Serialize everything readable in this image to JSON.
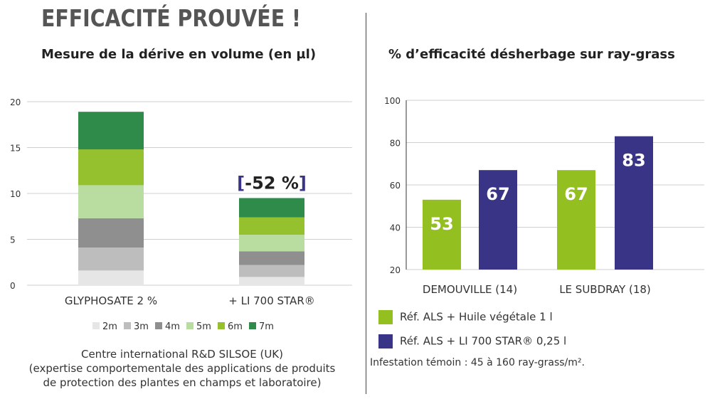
{
  "heading": "EFFICACITÉ PROUVÉE !",
  "colors": {
    "2m": "#e6e6e6",
    "3m": "#bdbdbd",
    "4m": "#8f8f8f",
    "5m": "#b9dca0",
    "6m": "#94c12d",
    "7m": "#2e8b4a",
    "green": "#93c020",
    "navy": "#3a3487",
    "badge": "#3a3487"
  },
  "chart_data": [
    {
      "type": "bar",
      "stacked": true,
      "title": "Mesure de la dérive en volume (en µl)",
      "categories": [
        "GLYPHOSATE 2 %",
        "+ LI 700 STAR®"
      ],
      "series": [
        {
          "name": "2m",
          "values": [
            1.6,
            0.9
          ]
        },
        {
          "name": "3m",
          "values": [
            2.5,
            1.3
          ]
        },
        {
          "name": "4m",
          "values": [
            3.2,
            1.5
          ]
        },
        {
          "name": "5m",
          "values": [
            3.6,
            1.8
          ]
        },
        {
          "name": "6m",
          "values": [
            3.9,
            1.9
          ]
        },
        {
          "name": "7m",
          "values": [
            4.1,
            2.1
          ]
        }
      ],
      "yticks": [
        0,
        5,
        10,
        15,
        20
      ],
      "ylim": [
        0,
        20
      ],
      "grid": true,
      "annotation": {
        "text": "[-52 %]",
        "category_index": 1
      },
      "legend_position": "bottom"
    },
    {
      "type": "bar",
      "title": "% d’efficacité désherbage sur ray-grass",
      "categories": [
        "DEMOUVILLE (14)",
        "LE SUBDRAY (18)"
      ],
      "series": [
        {
          "name": "Réf. ALS + Huile végétale 1 l",
          "values": [
            53,
            67
          ]
        },
        {
          "name": "Réf. ALS + LI 700 STAR® 0,25 l",
          "values": [
            67,
            83
          ]
        }
      ],
      "yticks": [
        20,
        40,
        60,
        80,
        100
      ],
      "ylim": [
        20,
        100
      ],
      "grid": true,
      "data_labels": true,
      "legend_position": "bottom"
    }
  ],
  "source_lines": [
    "Centre international R&D SILSOE (UK)",
    "(expertise comportementale des applications de produits",
    "de protection des plantes en champs et laboratoire)"
  ],
  "note": "Infestation témoin : 45 à 160 ray-grass/m²."
}
